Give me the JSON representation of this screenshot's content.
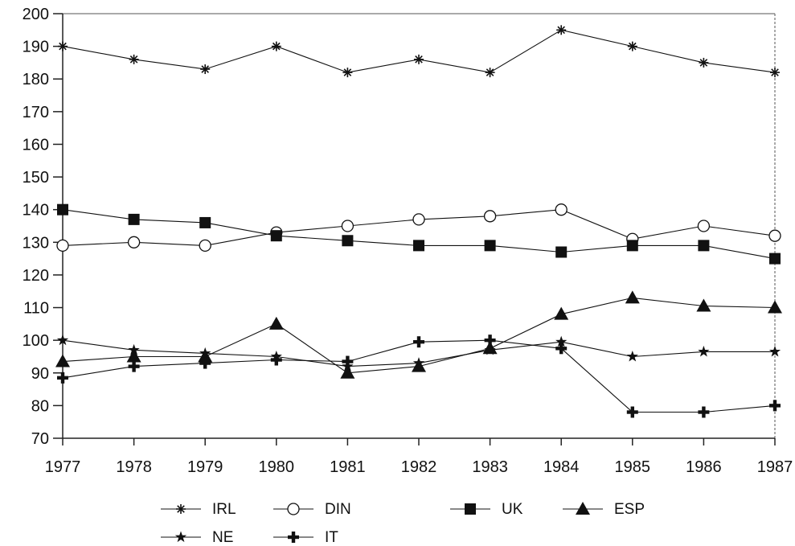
{
  "chart_data": {
    "type": "line",
    "title": "",
    "xlabel": "",
    "ylabel": "",
    "x": [
      1977,
      1978,
      1979,
      1980,
      1981,
      1982,
      1983,
      1984,
      1985,
      1986,
      1987
    ],
    "xlim": [
      1977,
      1987
    ],
    "ylim": [
      70,
      200
    ],
    "yticks": [
      70,
      80,
      90,
      100,
      110,
      120,
      130,
      140,
      150,
      160,
      170,
      180,
      190,
      200
    ],
    "grid": false,
    "legend_position": "bottom",
    "series": [
      {
        "name": "IRL",
        "marker": "asterisk",
        "values": [
          190,
          186,
          183,
          190,
          182,
          186,
          182,
          195,
          190,
          185,
          182
        ]
      },
      {
        "name": "DIN",
        "marker": "open-circle",
        "values": [
          129,
          130,
          129,
          133,
          135,
          137,
          138,
          140,
          131,
          135,
          132
        ]
      },
      {
        "name": "UK",
        "marker": "filled-square",
        "values": [
          140,
          137,
          136,
          132,
          130.5,
          129,
          129,
          127,
          129,
          129,
          125
        ]
      },
      {
        "name": "ESP",
        "marker": "filled-triangle",
        "values": [
          93.5,
          95,
          95,
          105,
          90,
          92,
          97.5,
          108,
          113,
          110.5,
          110
        ]
      },
      {
        "name": "NE",
        "marker": "star",
        "values": [
          100,
          97,
          96,
          95,
          92,
          93,
          97,
          99.5,
          95,
          96.5,
          96.5
        ]
      },
      {
        "name": "IT",
        "marker": "plus",
        "values": [
          88.5,
          92,
          93,
          94,
          93.5,
          99.5,
          100,
          97.5,
          78,
          78,
          80
        ]
      }
    ]
  },
  "colors": {
    "axis": "#222222",
    "series": "#111111",
    "background": "#ffffff"
  }
}
